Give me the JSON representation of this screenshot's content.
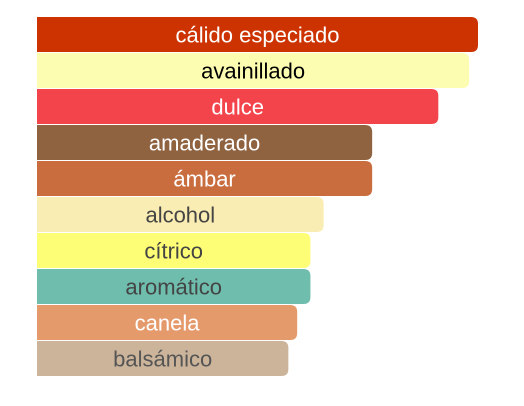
{
  "chart_data": {
    "type": "bar",
    "orientation": "horizontal",
    "categories": [
      "cálido especiado",
      "avainillado",
      "dulce",
      "amaderado",
      "ámbar",
      "alcohol",
      "cítrico",
      "aromático",
      "canela",
      "balsámico"
    ],
    "values": [
      100,
      98,
      91,
      76,
      76,
      65,
      62,
      62,
      59,
      57
    ],
    "colors": [
      "#cc3300",
      "#fdfdb2",
      "#f3434b",
      "#8f6240",
      "#c96d3f",
      "#faedb3",
      "#fefe76",
      "#6fbdad",
      "#e59a6c",
      "#ccb49a"
    ],
    "label_colors": [
      "#ffffff",
      "#000000",
      "#ffffff",
      "#ffffff",
      "#ffffff",
      "#444444",
      "#444444",
      "#444444",
      "#ffffff",
      "#555555"
    ],
    "xlim": [
      0,
      100
    ],
    "grid": false,
    "legend": "none"
  }
}
